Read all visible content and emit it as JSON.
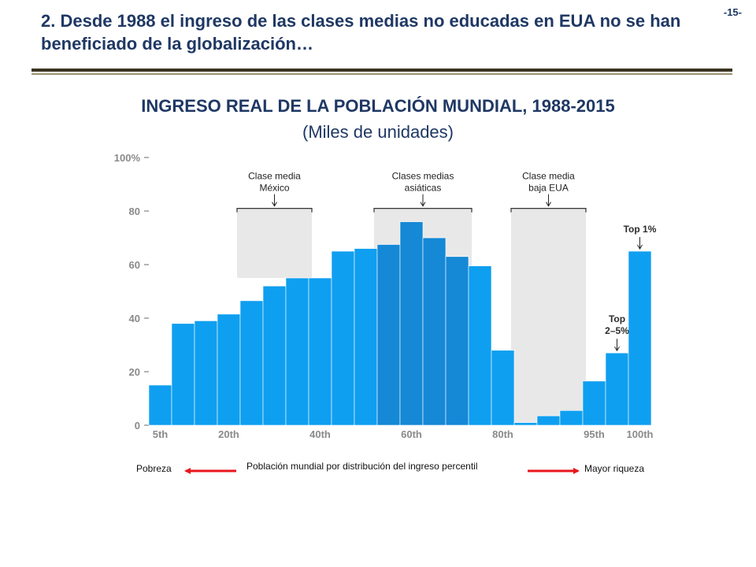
{
  "slide": {
    "title": "2. Desde 1988 el ingreso de las clases medias no educadas en EUA no se han beneficiado de la globalización…",
    "page_number": "-15-"
  },
  "chart_data": {
    "type": "bar",
    "title": "INGRESO REAL DE LA POBLACIÓN MUNDIAL, 1988-2015",
    "subtitle": "(Miles de unidades)",
    "xlabel": "Población mundial por distribución del ingreso percentil",
    "ylabel": "",
    "ylim": [
      0,
      100
    ],
    "yticks": [
      "100%",
      "80",
      "60",
      "40",
      "20",
      "0"
    ],
    "xticks": [
      "5th",
      "20th",
      "40th",
      "60th",
      "80th",
      "95th",
      "100th"
    ],
    "values": [
      15,
      38,
      39,
      41.5,
      46.5,
      52,
      55,
      55,
      65,
      66,
      67.5,
      76,
      70,
      63,
      59.5,
      28,
      1,
      3.5,
      5.5,
      16.5,
      27,
      65
    ],
    "bar_color": "#0f9ff0",
    "highlight_color": "#1588d6",
    "highlighted_bars": [
      10,
      11,
      12,
      13
    ],
    "shaded_color": "#e8e8e8",
    "group_annotations": [
      {
        "label": [
          "Clase media",
          "México"
        ],
        "from_bar": 4,
        "to_bar": 6,
        "shade_top": 81,
        "shade_bottom": 55
      },
      {
        "label": [
          "Clases medias",
          "asiáticas"
        ],
        "from_bar": 10,
        "to_bar": 13,
        "shade_top": 81,
        "shade_bottom": 0
      },
      {
        "label": [
          "Clase media",
          "baja EUA"
        ],
        "from_bar": 16,
        "to_bar": 18,
        "shade_top": 81,
        "shade_bottom": 0
      }
    ],
    "bar_annotations": [
      {
        "label": [
          "Top 1%"
        ],
        "bar": 21
      },
      {
        "label": [
          "Top",
          "2–5%"
        ],
        "bar": 20
      }
    ],
    "grid": false,
    "legend": "none"
  },
  "footer": {
    "left": "Pobreza",
    "right": "Mayor riqueza",
    "arrow_color": "#e8161c"
  }
}
